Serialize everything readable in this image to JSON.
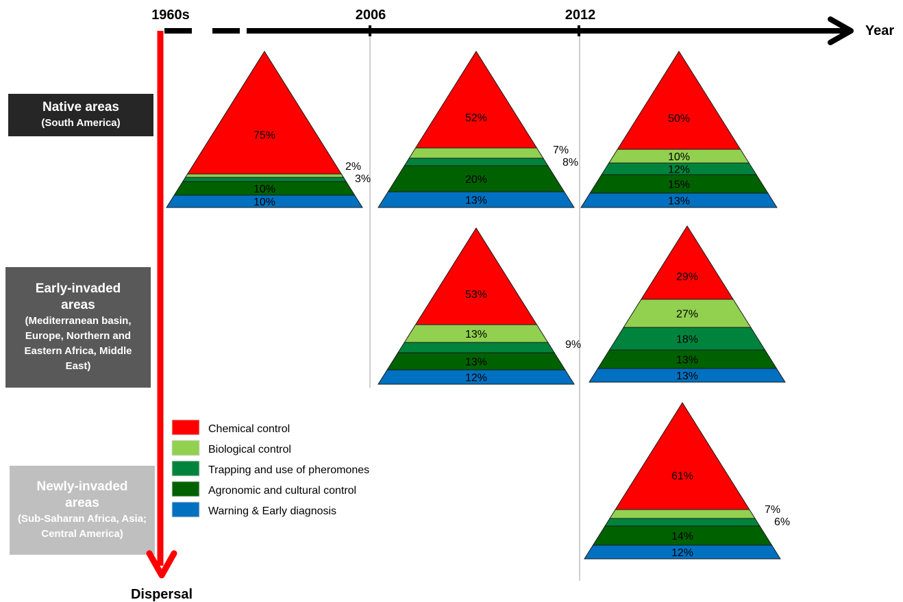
{
  "timeline": {
    "years": [
      "1960s",
      "2006",
      "2012"
    ],
    "x_axis_label": "Year",
    "y_axis_label": "Dispersal"
  },
  "regions": [
    {
      "title": "Native areas",
      "subtitle": "(South America)"
    },
    {
      "title": "Early-invaded areas",
      "subtitle": "(Mediterranean basin, Europe, Northern and Eastern Africa, Middle East)"
    },
    {
      "title": "Newly-invaded areas",
      "subtitle": "(Sub-Saharan Africa, Asia; Central America)"
    }
  ],
  "legend": [
    {
      "label": "Chemical control",
      "color": "#ff0000"
    },
    {
      "label": "Biological control",
      "color": "#92d050"
    },
    {
      "label": "Trapping and use of pheromones",
      "color": "#00843d"
    },
    {
      "label": "Agronomic and cultural control",
      "color": "#006100"
    },
    {
      "label": "Warning & Early diagnosis",
      "color": "#0070c0"
    }
  ],
  "pyramids": [
    {
      "region": "Native areas",
      "period": "1960s",
      "segments": [
        "75%",
        "2%",
        "3%",
        "10%",
        "10%"
      ]
    },
    {
      "region": "Native areas",
      "period": "2006",
      "segments": [
        "52%",
        "7%",
        "8%",
        "20%",
        "13%"
      ]
    },
    {
      "region": "Native areas",
      "period": "2012",
      "segments": [
        "50%",
        "10%",
        "12%",
        "15%",
        "13%"
      ]
    },
    {
      "region": "Early-invaded areas",
      "period": "2006",
      "segments": [
        "53%",
        "13%",
        "9%",
        "13%",
        "12%"
      ]
    },
    {
      "region": "Early-invaded areas",
      "period": "2012",
      "segments": [
        "29%",
        "27%",
        "18%",
        "13%",
        "13%"
      ]
    },
    {
      "region": "Newly-invaded areas",
      "period": "2012",
      "segments": [
        "61%",
        "7%",
        "6%",
        "14%",
        "12%"
      ]
    }
  ]
}
